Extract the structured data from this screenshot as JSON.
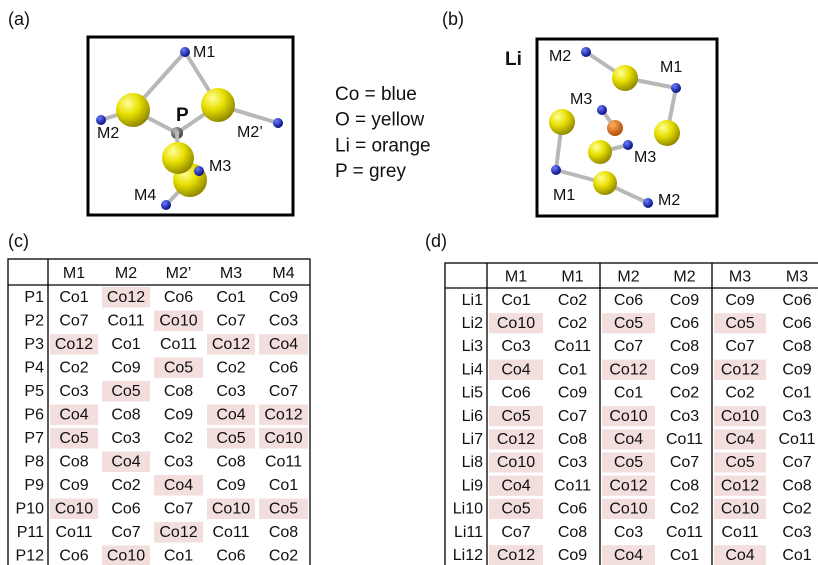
{
  "figure_a": {
    "label": "(a)",
    "atom_labels": [
      "M1",
      "M2",
      "P",
      "M2’",
      "M3",
      "M4"
    ]
  },
  "legend": [
    "Co = blue",
    "O = yellow",
    "Li = orange",
    "P = grey"
  ],
  "figure_b": {
    "label": "(b)",
    "atom_labels": [
      "Li",
      "M2",
      "M1",
      "M3",
      "M3",
      "M1",
      "M2"
    ]
  },
  "highlight_color": "#f3dede",
  "table_c": {
    "label": "(c)",
    "columns": [
      "M1",
      "M2",
      "M2’",
      "M3",
      "M4"
    ],
    "rows": [
      {
        "name": "P1",
        "cells": [
          "Co1",
          "Co12",
          "Co6",
          "Co1",
          "Co9"
        ],
        "highlighted": [
          1
        ]
      },
      {
        "name": "P2",
        "cells": [
          "Co7",
          "Co11",
          "Co10",
          "Co7",
          "Co3"
        ],
        "highlighted": [
          2
        ]
      },
      {
        "name": "P3",
        "cells": [
          "Co12",
          "Co1",
          "Co11",
          "Co12",
          "Co4"
        ],
        "highlighted": [
          0,
          3,
          4
        ]
      },
      {
        "name": "P4",
        "cells": [
          "Co2",
          "Co9",
          "Co5",
          "Co2",
          "Co6"
        ],
        "highlighted": [
          2
        ]
      },
      {
        "name": "P5",
        "cells": [
          "Co3",
          "Co5",
          "Co8",
          "Co3",
          "Co7"
        ],
        "highlighted": [
          1
        ]
      },
      {
        "name": "P6",
        "cells": [
          "Co4",
          "Co8",
          "Co9",
          "Co4",
          "Co12"
        ],
        "highlighted": [
          0,
          3,
          4
        ]
      },
      {
        "name": "P7",
        "cells": [
          "Co5",
          "Co3",
          "Co2",
          "Co5",
          "Co10"
        ],
        "highlighted": [
          0,
          3,
          4
        ]
      },
      {
        "name": "P8",
        "cells": [
          "Co8",
          "Co4",
          "Co3",
          "Co8",
          "Co11"
        ],
        "highlighted": [
          1
        ]
      },
      {
        "name": "P9",
        "cells": [
          "Co9",
          "Co2",
          "Co4",
          "Co9",
          "Co1"
        ],
        "highlighted": [
          2
        ]
      },
      {
        "name": "P10",
        "cells": [
          "Co10",
          "Co6",
          "Co7",
          "Co10",
          "Co5"
        ],
        "highlighted": [
          0,
          3,
          4
        ]
      },
      {
        "name": "P11",
        "cells": [
          "Co11",
          "Co7",
          "Co12",
          "Co11",
          "Co8"
        ],
        "highlighted": [
          2
        ]
      },
      {
        "name": "P12",
        "cells": [
          "Co6",
          "Co10",
          "Co1",
          "Co6",
          "Co2"
        ],
        "highlighted": [
          1
        ]
      }
    ]
  },
  "table_d": {
    "label": "(d)",
    "columns": [
      "M1",
      "M1",
      "M2",
      "M2",
      "M3",
      "M3"
    ],
    "rows": [
      {
        "name": "Li1",
        "cells": [
          "Co1",
          "Co2",
          "Co6",
          "Co9",
          "Co9",
          "Co6"
        ],
        "highlighted": []
      },
      {
        "name": "Li2",
        "cells": [
          "Co10",
          "Co2",
          "Co5",
          "Co6",
          "Co5",
          "Co6"
        ],
        "highlighted": [
          0,
          2,
          4
        ]
      },
      {
        "name": "Li3",
        "cells": [
          "Co3",
          "Co11",
          "Co7",
          "Co8",
          "Co7",
          "Co8"
        ],
        "highlighted": []
      },
      {
        "name": "Li4",
        "cells": [
          "Co4",
          "Co1",
          "Co12",
          "Co9",
          "Co12",
          "Co9"
        ],
        "highlighted": [
          0,
          2,
          4
        ]
      },
      {
        "name": "Li5",
        "cells": [
          "Co6",
          "Co9",
          "Co1",
          "Co2",
          "Co2",
          "Co1"
        ],
        "highlighted": []
      },
      {
        "name": "Li6",
        "cells": [
          "Co5",
          "Co7",
          "Co10",
          "Co3",
          "Co10",
          "Co3"
        ],
        "highlighted": [
          0,
          2,
          4
        ]
      },
      {
        "name": "Li7",
        "cells": [
          "Co12",
          "Co8",
          "Co4",
          "Co11",
          "Co4",
          "Co11"
        ],
        "highlighted": [
          0,
          2,
          4
        ]
      },
      {
        "name": "Li8",
        "cells": [
          "Co10",
          "Co3",
          "Co5",
          "Co7",
          "Co5",
          "Co7"
        ],
        "highlighted": [
          0,
          2,
          4
        ]
      },
      {
        "name": "Li9",
        "cells": [
          "Co4",
          "Co11",
          "Co12",
          "Co8",
          "Co12",
          "Co8"
        ],
        "highlighted": [
          0,
          2,
          4
        ]
      },
      {
        "name": "Li10",
        "cells": [
          "Co5",
          "Co6",
          "Co10",
          "Co2",
          "Co10",
          "Co2"
        ],
        "highlighted": [
          0,
          2,
          4
        ]
      },
      {
        "name": "Li11",
        "cells": [
          "Co7",
          "Co8",
          "Co3",
          "Co11",
          "Co11",
          "Co3"
        ],
        "highlighted": []
      },
      {
        "name": "Li12",
        "cells": [
          "Co12",
          "Co9",
          "Co4",
          "Co1",
          "Co4",
          "Co1"
        ],
        "highlighted": [
          0,
          2,
          4
        ]
      }
    ]
  }
}
